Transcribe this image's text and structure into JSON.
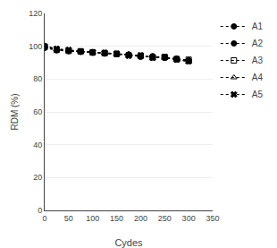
{
  "chart_data": {
    "type": "line",
    "xlabel": "Cydes",
    "ylabel": "RDM (%)",
    "x": [
      0,
      25,
      50,
      75,
      100,
      125,
      150,
      175,
      200,
      225,
      250,
      275,
      300
    ],
    "series": [
      {
        "name": "A1",
        "color": "#000000",
        "marker": "circle",
        "line_style": "dotted",
        "values": [
          100,
          98.0,
          97.5,
          97.0,
          96.5,
          96.0,
          95.5,
          95.0,
          94.0,
          93.5,
          93.0,
          92.0,
          91.0
        ]
      },
      {
        "name": "A2",
        "color": "#000000",
        "marker": "circle",
        "line_style": "dotted",
        "values": [
          99.0,
          97.5,
          97.0,
          96.5,
          96.0,
          95.5,
          95.2,
          94.8,
          93.5,
          94.0,
          93.0,
          92.5,
          91.5
        ]
      },
      {
        "name": "A3",
        "color": "#000000",
        "marker": "square-open",
        "line_style": "dotted",
        "values": [
          99.5,
          97.8,
          97.2,
          96.8,
          96.2,
          95.8,
          95.3,
          94.5,
          94.2,
          93.2,
          93.5,
          92.2,
          91.8
        ]
      },
      {
        "name": "A4",
        "color": "#000000",
        "marker": "triangle-up-open",
        "line_style": "dotted",
        "values": [
          100.5,
          98.2,
          97.3,
          96.7,
          96.3,
          95.7,
          95.0,
          95.2,
          93.8,
          93.6,
          92.8,
          92.0,
          90.5
        ]
      },
      {
        "name": "A5",
        "color": "#000000",
        "marker": "x",
        "line_style": "dotted",
        "values": [
          100.0,
          98.5,
          97.8,
          97.0,
          96.4,
          96.0,
          95.5,
          94.3,
          94.5,
          93.0,
          93.2,
          91.8,
          90.8
        ]
      }
    ],
    "xlim": [
      0,
      350
    ],
    "ylim": [
      0,
      120
    ],
    "xticks": [
      0,
      50,
      100,
      150,
      200,
      250,
      300,
      350
    ],
    "yticks": [
      0,
      20,
      40,
      60,
      80,
      100,
      120
    ],
    "grid": "y",
    "legend": "right"
  }
}
